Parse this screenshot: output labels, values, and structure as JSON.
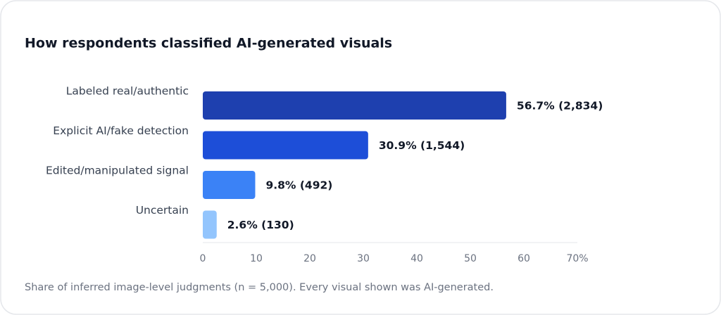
{
  "chart_data": {
    "type": "bar",
    "orientation": "horizontal",
    "title": "How respondents classified AI-generated visuals",
    "categories": [
      "Labeled real/authentic",
      "Explicit AI/fake detection",
      "Edited/manipulated signal",
      "Uncertain"
    ],
    "values": [
      56.7,
      30.9,
      9.8,
      2.6
    ],
    "value_labels": [
      "56.7% (2,834)",
      "30.9% (1,544)",
      "9.8% (492)",
      "2.6% (130)"
    ],
    "colors": [
      "#1e40af",
      "#1d4ed8",
      "#3b82f6",
      "#93c5fd"
    ],
    "xlim": [
      0,
      70
    ],
    "xticks": [
      0,
      10,
      20,
      30,
      40,
      50,
      60,
      {
        "value": 70,
        "label": "70%"
      }
    ],
    "grid": false,
    "footnote": "Share of inferred image-level judgments (n = 5,000). Every visual shown was AI-generated."
  }
}
